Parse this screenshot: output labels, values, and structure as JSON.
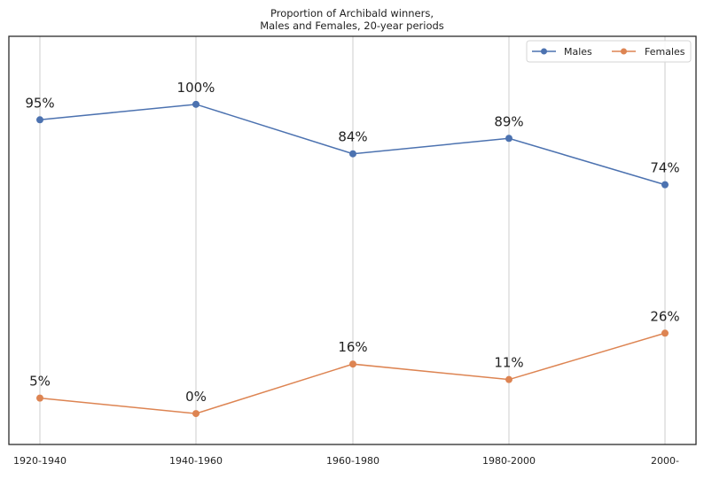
{
  "chart_data": {
    "type": "line",
    "title": "Proportion of Archibald winners,\nMales and Females, 20-year periods",
    "categories": [
      "1920-1940",
      "1940-1960",
      "1960-1980",
      "1980-2000",
      "2000-"
    ],
    "series": [
      {
        "name": "Males",
        "values": [
          95,
          100,
          84,
          89,
          74
        ],
        "labels": [
          "95%",
          "100%",
          "84%",
          "89%",
          "74%"
        ],
        "color": "#4c72b0",
        "marker": "circle"
      },
      {
        "name": "Females",
        "values": [
          5,
          0,
          16,
          11,
          26
        ],
        "labels": [
          "5%",
          "0%",
          "16%",
          "11%",
          "26%"
        ],
        "color": "#dd8452",
        "marker": "circle"
      }
    ],
    "ylim": [
      -10,
      122
    ],
    "grid": "vertical",
    "legend_position": "top-right",
    "xlabel": "",
    "ylabel": ""
  }
}
